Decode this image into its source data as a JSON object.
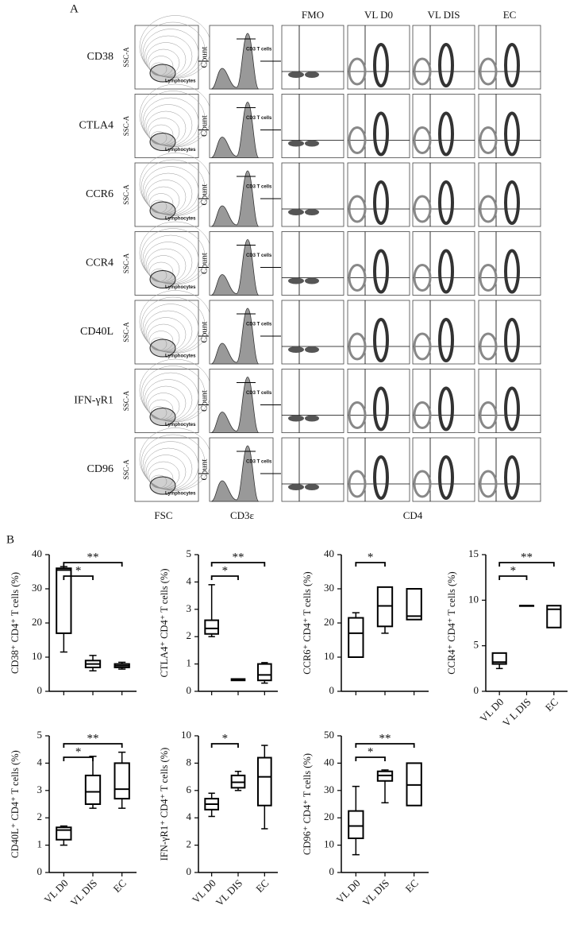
{
  "panel_a": {
    "label": "A",
    "columns": [
      "FMO",
      "VL D0",
      "VL DIS",
      "EC"
    ],
    "rows": [
      "CD38",
      "CTLA4",
      "CCR6",
      "CCR4",
      "CD40L",
      "IFN-γR1",
      "CD96"
    ],
    "ssc_label": "SSC-A",
    "count_label": "Count",
    "gate_lymph": "Lymphocytes",
    "gate_cd3": "CD3 T cells",
    "x_labels": [
      "FSC",
      "CD3ε",
      "CD4"
    ]
  },
  "panel_b": {
    "label": "B"
  },
  "chart_data": [
    {
      "type": "box",
      "y_label": "CD38⁺ CD4⁺ T cells (%)",
      "categories": [
        null,
        null,
        null
      ],
      "boxes": [
        {
          "min": 11.5,
          "q1": 17,
          "median": 35.5,
          "q3": 36,
          "max": 36.5
        },
        {
          "min": 6,
          "q1": 7,
          "median": 8,
          "q3": 9,
          "max": 10.5
        },
        {
          "min": 6.5,
          "q1": 7,
          "median": 7.5,
          "q3": 8,
          "max": 8.5
        }
      ],
      "ylim": [
        0,
        40
      ],
      "yticks": [
        0,
        10,
        20,
        30,
        40
      ],
      "annotations": [
        {
          "text": "*",
          "from": 0,
          "to": 1
        },
        {
          "text": "**",
          "from": 0,
          "to": 2
        }
      ]
    },
    {
      "type": "box",
      "y_label": "CTLA4⁺ CD4⁺ T cells (%)",
      "categories": [
        null,
        null,
        null
      ],
      "boxes": [
        {
          "min": 2.0,
          "q1": 2.1,
          "median": 2.3,
          "q3": 2.6,
          "max": 3.9
        },
        {
          "min": 0.4,
          "q1": 0.4,
          "median": 0.42,
          "q3": 0.45,
          "max": 0.45
        },
        {
          "min": 0.3,
          "q1": 0.4,
          "median": 0.6,
          "q3": 1.0,
          "max": 1.05
        }
      ],
      "ylim": [
        0,
        5
      ],
      "yticks": [
        0,
        1,
        2,
        3,
        4,
        5
      ],
      "annotations": [
        {
          "text": "*",
          "from": 0,
          "to": 1
        },
        {
          "text": "**",
          "from": 0,
          "to": 2
        }
      ]
    },
    {
      "type": "box",
      "y_label": "CCR6⁺ CD4⁺ T cells (%)",
      "categories": [
        null,
        null,
        null
      ],
      "boxes": [
        {
          "min": 10,
          "q1": 10,
          "median": 17,
          "q3": 21.5,
          "max": 23
        },
        {
          "min": 17,
          "q1": 19,
          "median": 25,
          "q3": 30.5,
          "max": 30.5
        },
        {
          "min": 21,
          "q1": 21,
          "median": 22,
          "q3": 30,
          "max": 30
        }
      ],
      "ylim": [
        0,
        40
      ],
      "yticks": [
        0,
        10,
        20,
        30,
        40
      ],
      "annotations": [
        {
          "text": "*",
          "from": 0,
          "to": 1
        }
      ]
    },
    {
      "type": "box",
      "y_label": "CCR4⁺ CD4⁺ T cells (%)",
      "categories": [
        "VL D0",
        "V L DIS",
        "EC"
      ],
      "boxes": [
        {
          "min": 2.5,
          "q1": 3,
          "median": 3.2,
          "q3": 4.2,
          "max": 4.2
        },
        {
          "min": 9.4,
          "q1": 9.4,
          "median": 9.4,
          "q3": 9.4,
          "max": 9.4
        },
        {
          "min": 7,
          "q1": 7,
          "median": 9,
          "q3": 9.4,
          "max": 9.4
        }
      ],
      "ylim": [
        0,
        15
      ],
      "yticks": [
        0,
        5,
        10,
        15
      ],
      "annotations": [
        {
          "text": "*",
          "from": 0,
          "to": 1
        },
        {
          "text": "**",
          "from": 0,
          "to": 2
        }
      ]
    },
    {
      "type": "box",
      "y_label": "CD40L⁺ CD4⁺ T cells (%)",
      "categories": [
        "VL D0",
        "VL DIS",
        "EC"
      ],
      "boxes": [
        {
          "min": 1.0,
          "q1": 1.2,
          "median": 1.55,
          "q3": 1.65,
          "max": 1.7
        },
        {
          "min": 2.35,
          "q1": 2.5,
          "median": 2.95,
          "q3": 3.55,
          "max": 4.25
        },
        {
          "min": 2.35,
          "q1": 2.7,
          "median": 3.05,
          "q3": 4.0,
          "max": 4.4
        }
      ],
      "ylim": [
        0,
        5
      ],
      "yticks": [
        0,
        1,
        2,
        3,
        4,
        5
      ],
      "annotations": [
        {
          "text": "*",
          "from": 0,
          "to": 1
        },
        {
          "text": "**",
          "from": 0,
          "to": 2
        }
      ]
    },
    {
      "type": "box",
      "y_label": "IFN-γR1⁺ CD4⁺ T cells (%)",
      "categories": [
        "VL D0",
        "VL DIS",
        "EC"
      ],
      "boxes": [
        {
          "min": 4.1,
          "q1": 4.6,
          "median": 5.0,
          "q3": 5.4,
          "max": 5.8
        },
        {
          "min": 6.0,
          "q1": 6.2,
          "median": 6.6,
          "q3": 7.1,
          "max": 7.4
        },
        {
          "min": 3.2,
          "q1": 4.9,
          "median": 7.0,
          "q3": 8.4,
          "max": 9.3
        }
      ],
      "ylim": [
        0,
        10
      ],
      "yticks": [
        0,
        2,
        4,
        6,
        8,
        10
      ],
      "annotations": [
        {
          "text": "*",
          "from": 0,
          "to": 1
        }
      ]
    },
    {
      "type": "box",
      "y_label": "CD96⁺ CD4⁺ T cells (%)",
      "categories": [
        "VL D0",
        "VL DIS",
        "EC"
      ],
      "boxes": [
        {
          "min": 6.5,
          "q1": 12.5,
          "median": 17,
          "q3": 22.5,
          "max": 31.5
        },
        {
          "min": 25.5,
          "q1": 33.5,
          "median": 35.5,
          "q3": 37,
          "max": 37.5
        },
        {
          "min": 24.5,
          "q1": 24.5,
          "median": 32,
          "q3": 40,
          "max": 40
        }
      ],
      "ylim": [
        0,
        50
      ],
      "yticks": [
        0,
        10,
        20,
        30,
        40,
        50
      ],
      "annotations": [
        {
          "text": "*",
          "from": 0,
          "to": 1
        },
        {
          "text": "**",
          "from": 0,
          "to": 2
        }
      ]
    }
  ]
}
